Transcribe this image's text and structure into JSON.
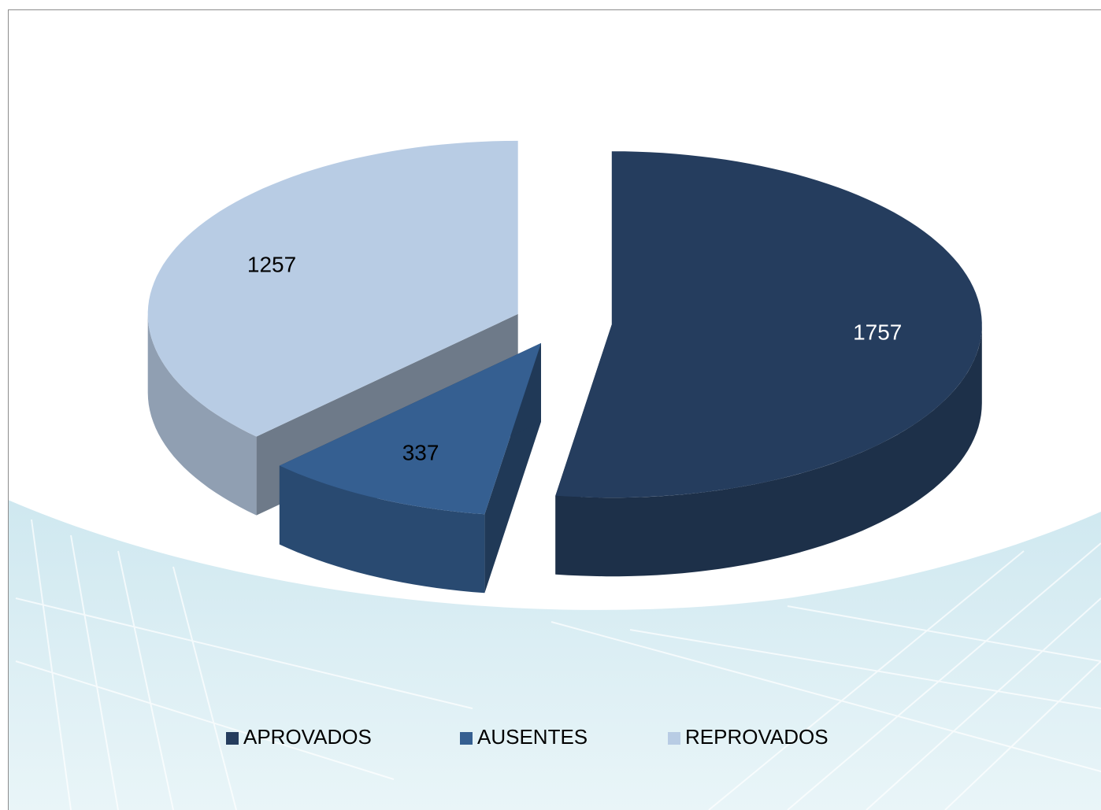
{
  "chart_data": {
    "type": "pie",
    "categories": [
      "APROVADOS",
      "AUSENTES",
      "REPROVADOS"
    ],
    "values": [
      1757,
      337,
      1257
    ],
    "colors": [
      "#253d5e",
      "#355f91",
      "#b8cce4"
    ],
    "legend": "bottom"
  }
}
